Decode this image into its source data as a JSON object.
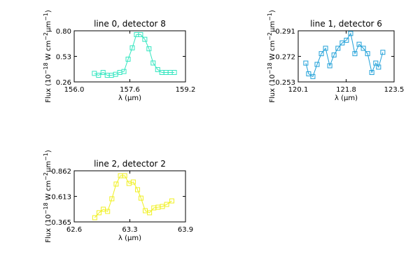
{
  "chart_data": [
    {
      "type": "line",
      "title": "line 0, detector 8",
      "xlabel": "λ (μm)",
      "ylabel_parts": [
        "Flux (10",
        "−18",
        " W cm",
        "−2",
        "μm",
        "−1",
        ")"
      ],
      "color": "#33e6c0",
      "x": [
        156.58,
        156.7,
        156.83,
        156.95,
        157.07,
        157.19,
        157.31,
        157.43,
        157.55,
        157.67,
        157.79,
        157.91,
        158.03,
        158.15,
        158.27,
        158.4,
        158.52,
        158.64,
        158.76,
        158.88
      ],
      "values": [
        0.35,
        0.33,
        0.36,
        0.33,
        0.33,
        0.34,
        0.36,
        0.37,
        0.5,
        0.62,
        0.76,
        0.76,
        0.71,
        0.61,
        0.46,
        0.39,
        0.36,
        0.36,
        0.36,
        0.36
      ],
      "xlim": [
        156,
        159.2
      ],
      "xticks": [
        {
          "value": 156,
          "label": "156.0"
        },
        157.6,
        159.2
      ],
      "ylim": [
        0.26,
        0.8
      ],
      "yticks": [
        0.26,
        0.53,
        {
          "value": 0.8,
          "label": "0.80"
        }
      ]
    },
    {
      "type": "line",
      "title": "line 1, detector 6",
      "xlabel": "λ (μm)",
      "ylabel_parts": [
        "Flux (10",
        "−18",
        " W cm",
        "−2",
        "μm",
        "−1",
        ")"
      ],
      "color": "#1fa0d8",
      "x": [
        120.37,
        120.47,
        120.62,
        120.77,
        120.92,
        121.07,
        121.22,
        121.37,
        121.51,
        121.66,
        121.81,
        121.96,
        122.11,
        122.26,
        122.41,
        122.56,
        122.71,
        122.85,
        122.95,
        123.1
      ],
      "values": [
        0.267,
        0.259,
        0.257,
        0.266,
        0.274,
        0.278,
        0.265,
        0.273,
        0.278,
        0.282,
        0.284,
        0.289,
        0.274,
        0.281,
        0.278,
        0.274,
        0.26,
        0.267,
        0.264,
        0.275
      ],
      "xlim": [
        120.1,
        123.5
      ],
      "xticks": [
        120.1,
        121.8,
        123.5
      ],
      "ylim": [
        0.253,
        0.291
      ],
      "yticks": [
        0.253,
        0.272,
        0.291
      ]
    },
    {
      "type": "line",
      "title": "line 2, detector 2",
      "xlabel": "λ (μm)",
      "ylabel_parts": [
        "Flux (10",
        "−18",
        " W cm",
        "−2",
        "μm",
        "−1",
        ")"
      ],
      "color": "#f0f020",
      "x": [
        62.84,
        62.89,
        62.94,
        62.99,
        63.04,
        63.09,
        63.14,
        63.19,
        63.24,
        63.29,
        63.34,
        63.38,
        63.43,
        63.48,
        63.53,
        63.58,
        63.63,
        63.68,
        63.74
      ],
      "values": [
        0.406,
        0.454,
        0.488,
        0.467,
        0.59,
        0.733,
        0.814,
        0.814,
        0.739,
        0.753,
        0.678,
        0.596,
        0.474,
        0.454,
        0.501,
        0.508,
        0.515,
        0.535,
        0.569
      ],
      "xlim": [
        62.6,
        63.9
      ],
      "xticks": [
        62.6,
        {
          "value": 63.25,
          "label": "63.3"
        },
        63.9
      ],
      "ylim": [
        0.365,
        0.862
      ],
      "yticks": [
        0.365,
        0.613,
        0.862
      ]
    }
  ]
}
